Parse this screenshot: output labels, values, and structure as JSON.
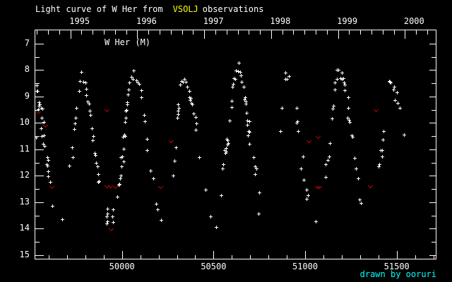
{
  "title": {
    "prefix": "Light curve of W Her from",
    "highlight": "VSOLJ",
    "suffix": "observations"
  },
  "plot_label": "W Her (M)",
  "credit": "drawn by ooruri",
  "colors": {
    "background": "#000000",
    "text": "#ffffff",
    "axis": "#ffffff",
    "vsolj_highlight": "#ffff00",
    "credit_text": "#00ffff",
    "data_marker": "#ffffff",
    "limit_marker": "#cc0000"
  },
  "top_axis": {
    "labels": [
      "1995",
      "1996",
      "1997",
      "1998",
      "1999",
      "2000"
    ]
  },
  "bottom_axis": {
    "labels": [
      "50000",
      "50500",
      "51000",
      "51500"
    ]
  },
  "left_axis": {
    "labels": [
      "7",
      "8",
      "9",
      "10",
      "11",
      "12",
      "13",
      "14",
      "15"
    ]
  },
  "chart_data": {
    "type": "scatter",
    "title": "Light curve of W Her from VSOLJ observations",
    "xlabel": "",
    "ylabel": "",
    "xlim": [
      49523,
      51717
    ],
    "ylim": [
      6.47,
      15.16
    ],
    "y_inverted": true,
    "grid": false,
    "x_ticks": [
      50000,
      50500,
      51000,
      51500
    ],
    "x_minor_step": 100,
    "y_ticks": [
      7,
      8,
      9,
      10,
      11,
      12,
      13,
      14,
      15
    ],
    "y_minor_step": 0.5,
    "year_ticks": [
      1995,
      1996,
      1997,
      1998,
      1999,
      2000
    ],
    "series": [
      {
        "name": "observation",
        "marker": "plus",
        "color": "#ffffff",
        "points": [
          [
            49531,
            10.55
          ],
          [
            49535,
            8.57
          ],
          [
            49535,
            8.79
          ],
          [
            49539,
            8.79
          ],
          [
            49542,
            9.48
          ],
          [
            49546,
            9.21
          ],
          [
            49546,
            9.35
          ],
          [
            49550,
            9.29
          ],
          [
            49558,
            9.43
          ],
          [
            49558,
            10.2
          ],
          [
            49562,
            9.8
          ],
          [
            49562,
            10.49
          ],
          [
            49566,
            9.45
          ],
          [
            49569,
            10.79
          ],
          [
            49573,
            9.96
          ],
          [
            49573,
            10.47
          ],
          [
            49577,
            10.87
          ],
          [
            49589,
            11.56
          ],
          [
            49592,
            11.29
          ],
          [
            49592,
            11.61
          ],
          [
            49596,
            11.4
          ],
          [
            49596,
            11.83
          ],
          [
            49596,
            12.01
          ],
          [
            49608,
            12.23
          ],
          [
            49620,
            13.13
          ],
          [
            49673,
            13.64
          ],
          [
            49712,
            11.61
          ],
          [
            49727,
            10.92
          ],
          [
            49731,
            11.29
          ],
          [
            49739,
            10.23
          ],
          [
            49743,
            10.01
          ],
          [
            49747,
            9.8
          ],
          [
            49751,
            9.43
          ],
          [
            49766,
            8.79
          ],
          [
            49770,
            8.41
          ],
          [
            49778,
            8.07
          ],
          [
            49789,
            8.44
          ],
          [
            49801,
            8.47
          ],
          [
            49805,
            8.71
          ],
          [
            49805,
            8.95
          ],
          [
            49813,
            9.19
          ],
          [
            49820,
            9.27
          ],
          [
            49824,
            9.53
          ],
          [
            49828,
            9.69
          ],
          [
            49835,
            10.2
          ],
          [
            49839,
            10.65
          ],
          [
            49843,
            10.49
          ],
          [
            49851,
            11.13
          ],
          [
            49855,
            11.21
          ],
          [
            49859,
            11.51
          ],
          [
            49866,
            11.64
          ],
          [
            49870,
            11.93
          ],
          [
            49870,
            12.23
          ],
          [
            49874,
            12.2
          ],
          [
            49916,
            13.53
          ],
          [
            49916,
            13.8
          ],
          [
            49920,
            13.24
          ],
          [
            49920,
            13.43
          ],
          [
            49920,
            13.72
          ],
          [
            49947,
            13.53
          ],
          [
            49951,
            13.27
          ],
          [
            49951,
            13.75
          ],
          [
            49974,
            12.79
          ],
          [
            49982,
            12.33
          ],
          [
            49986,
            12.31
          ],
          [
            49990,
            12.09
          ],
          [
            49993,
            11.29
          ],
          [
            49993,
            11.99
          ],
          [
            49997,
            11.64
          ],
          [
            50001,
            11.27
          ],
          [
            50005,
            10.52
          ],
          [
            50009,
            10.97
          ],
          [
            50009,
            11.45
          ],
          [
            50013,
            10.44
          ],
          [
            50017,
            9.96
          ],
          [
            50017,
            10.49
          ],
          [
            50020,
            9.53
          ],
          [
            50020,
            9.8
          ],
          [
            50024,
            9.51
          ],
          [
            50028,
            9.21
          ],
          [
            50028,
            9.29
          ],
          [
            50032,
            8.92
          ],
          [
            50036,
            8.73
          ],
          [
            50040,
            8.47
          ],
          [
            50051,
            8.25
          ],
          [
            50059,
            8.33
          ],
          [
            50063,
            8.01
          ],
          [
            50078,
            8.39
          ],
          [
            50086,
            8.47
          ],
          [
            50094,
            8.52
          ],
          [
            50105,
            8.76
          ],
          [
            50105,
            9.03
          ],
          [
            50121,
            9.69
          ],
          [
            50125,
            9.93
          ],
          [
            50136,
            10.6
          ],
          [
            50136,
            11.03
          ],
          [
            50155,
            11.8
          ],
          [
            50171,
            12.09
          ],
          [
            50186,
            13.05
          ],
          [
            50194,
            13.27
          ],
          [
            50213,
            13.67
          ],
          [
            50279,
            11.99
          ],
          [
            50286,
            11.43
          ],
          [
            50294,
            10.92
          ],
          [
            50302,
            9.8
          ],
          [
            50306,
            9.29
          ],
          [
            50306,
            9.53
          ],
          [
            50306,
            9.67
          ],
          [
            50310,
            9.43
          ],
          [
            50317,
            8.55
          ],
          [
            50325,
            8.41
          ],
          [
            50333,
            8.44
          ],
          [
            50340,
            8.33
          ],
          [
            50348,
            8.44
          ],
          [
            50356,
            8.63
          ],
          [
            50367,
            8.79
          ],
          [
            50367,
            9.03
          ],
          [
            50371,
            9.13
          ],
          [
            50375,
            9.05
          ],
          [
            50379,
            9.24
          ],
          [
            50383,
            9.29
          ],
          [
            50391,
            9.64
          ],
          [
            50402,
            9.77
          ],
          [
            50402,
            10.25
          ],
          [
            50406,
            10.01
          ],
          [
            50421,
            11.29
          ],
          [
            50456,
            12.52
          ],
          [
            50483,
            13.53
          ],
          [
            50514,
            13.93
          ],
          [
            50541,
            12.73
          ],
          [
            50549,
            11.72
          ],
          [
            50552,
            11.56
          ],
          [
            50560,
            11.03
          ],
          [
            50564,
            11.13
          ],
          [
            50568,
            10.95
          ],
          [
            50568,
            11.08
          ],
          [
            50572,
            10.6
          ],
          [
            50576,
            10.65
          ],
          [
            50576,
            10.81
          ],
          [
            50579,
            10.76
          ],
          [
            50587,
            9.91
          ],
          [
            50599,
            9.16
          ],
          [
            50599,
            9.4
          ],
          [
            50603,
            8.63
          ],
          [
            50606,
            8.52
          ],
          [
            50610,
            8.31
          ],
          [
            50618,
            8.33
          ],
          [
            50622,
            8.01
          ],
          [
            50633,
            8.04
          ],
          [
            50637,
            7.72
          ],
          [
            50645,
            8.07
          ],
          [
            50649,
            8.2
          ],
          [
            50653,
            8.44
          ],
          [
            50664,
            8.63
          ],
          [
            50668,
            9.11
          ],
          [
            50672,
            9.03
          ],
          [
            50676,
            9.19
          ],
          [
            50676,
            9.27
          ],
          [
            50680,
            9.61
          ],
          [
            50683,
            9.91
          ],
          [
            50683,
            10.07
          ],
          [
            50687,
            10.47
          ],
          [
            50691,
            10.31
          ],
          [
            50695,
            9.93
          ],
          [
            50695,
            10.33
          ],
          [
            50695,
            10.79
          ],
          [
            50718,
            11.29
          ],
          [
            50726,
            11.64
          ],
          [
            50726,
            11.93
          ],
          [
            50733,
            11.72
          ],
          [
            50745,
            13.43
          ],
          [
            50749,
            12.63
          ],
          [
            50865,
            10.31
          ],
          [
            50872,
            9.43
          ],
          [
            50892,
            8.09
          ],
          [
            50892,
            8.33
          ],
          [
            50899,
            8.33
          ],
          [
            50911,
            8.23
          ],
          [
            50953,
            9.43
          ],
          [
            50953,
            9.99
          ],
          [
            50957,
            9.93
          ],
          [
            50961,
            10.31
          ],
          [
            50977,
            11.72
          ],
          [
            50988,
            11.27
          ],
          [
            50992,
            12.15
          ],
          [
            51007,
            12.52
          ],
          [
            51007,
            12.87
          ],
          [
            51015,
            12.73
          ],
          [
            51057,
            13.72
          ],
          [
            51112,
            11.56
          ],
          [
            51112,
            12.04
          ],
          [
            51123,
            11.4
          ],
          [
            51131,
            11.27
          ],
          [
            51135,
            10.76
          ],
          [
            51146,
            9.83
          ],
          [
            51150,
            9.45
          ],
          [
            51154,
            9.35
          ],
          [
            51162,
            8.47
          ],
          [
            51162,
            8.73
          ],
          [
            51173,
            7.99
          ],
          [
            51173,
            8.33
          ],
          [
            51181,
            7.99
          ],
          [
            51192,
            8.31
          ],
          [
            51200,
            8.09
          ],
          [
            51200,
            8.33
          ],
          [
            51208,
            8.31
          ],
          [
            51212,
            8.47
          ],
          [
            51215,
            8.55
          ],
          [
            51215,
            8.76
          ],
          [
            51231,
            9.8
          ],
          [
            51235,
            9.03
          ],
          [
            51235,
            9.43
          ],
          [
            51238,
            9.88
          ],
          [
            51242,
            9.96
          ],
          [
            51254,
            10.47
          ],
          [
            51258,
            10.52
          ],
          [
            51269,
            11.32
          ],
          [
            51277,
            11.72
          ],
          [
            51289,
            12.09
          ],
          [
            51296,
            12.89
          ],
          [
            51304,
            13.03
          ],
          [
            51400,
            11.64
          ],
          [
            51404,
            11.56
          ],
          [
            51412,
            11.03
          ],
          [
            51419,
            11.03
          ],
          [
            51419,
            11.27
          ],
          [
            51423,
            10.63
          ],
          [
            51427,
            10.31
          ],
          [
            51458,
            8.41
          ],
          [
            51462,
            8.44
          ],
          [
            51466,
            8.47
          ],
          [
            51481,
            8.73
          ],
          [
            51485,
            8.63
          ],
          [
            51489,
            9.13
          ],
          [
            51500,
            8.84
          ],
          [
            51504,
            9.24
          ],
          [
            51516,
            9.43
          ],
          [
            51539,
            10.44
          ]
        ]
      },
      {
        "name": "fainter-than-limit",
        "marker": "v",
        "color": "#cc0000",
        "points": [
          [
            49542,
            9.56
          ],
          [
            49581,
            10.07
          ],
          [
            49615,
            12.39
          ],
          [
            49916,
            9.48
          ],
          [
            49916,
            12.36
          ],
          [
            49936,
            12.36
          ],
          [
            49963,
            12.39
          ],
          [
            49940,
            13.99
          ],
          [
            50209,
            12.39
          ],
          [
            50267,
            10.65
          ],
          [
            51019,
            10.65
          ],
          [
            51065,
            12.39
          ],
          [
            51069,
            10.49
          ],
          [
            51077,
            12.39
          ],
          [
            51354,
            12.36
          ],
          [
            51385,
            9.48
          ]
        ]
      }
    ]
  }
}
